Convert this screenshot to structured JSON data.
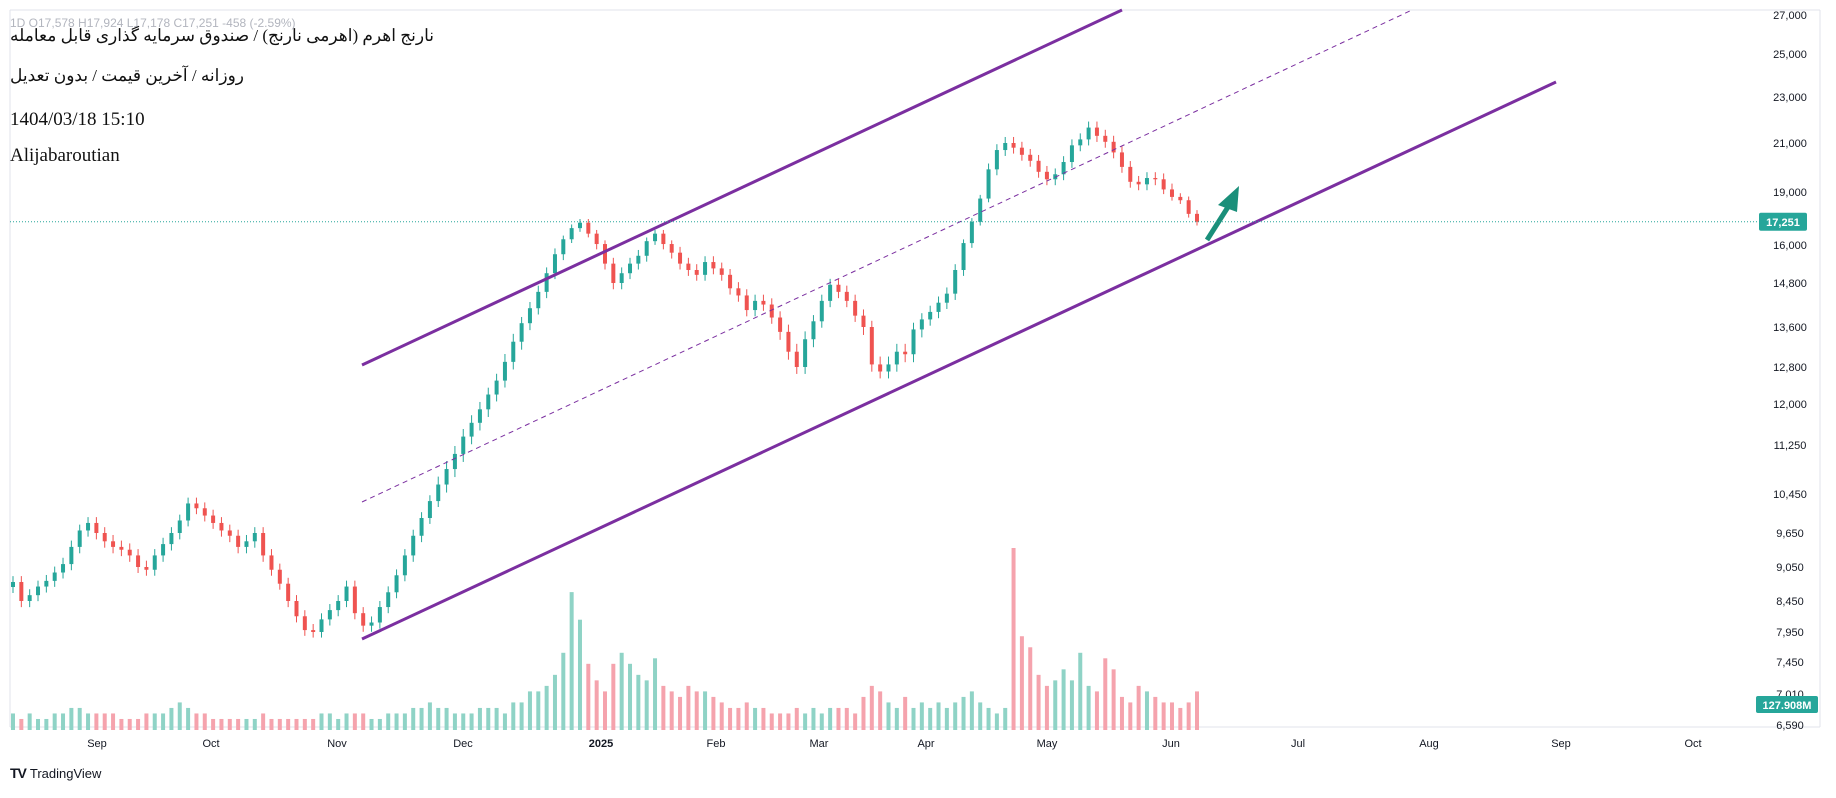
{
  "header": {
    "ticker_line": "نارنج اهرم (اهرمی نارنج) / صندوق سرمایه گذاری قابل معامله",
    "ohlc_line": "1D O17,578 H17,924 L17,178 C17,251 -458 (-2.59%)",
    "subtitle": "روزانه / آخرین قیمت / بدون تعدیل",
    "timestamp": "1404/03/18 15:10",
    "author": "Alijabaroutian"
  },
  "watermark": {
    "text": "TradingView",
    "logo": "TV"
  },
  "chart_data": {
    "type": "candlestick",
    "title": "نارنج اهرم (اهرمی نارنج) / صندوق سرمایه گذاری قابل معامله",
    "interval": "1D",
    "price_scale": "log",
    "y_ticks": [
      27000,
      25000,
      23000,
      21000,
      19000,
      16000,
      14800,
      13600,
      12800,
      12000,
      11250,
      10450,
      9650,
      9050,
      8450,
      7950,
      7450,
      7010,
      6590
    ],
    "y_tick_labels": [
      "27,000",
      "25,000",
      "23,000",
      "21,000",
      "19,000",
      "16,000",
      "14,800",
      "13,600",
      "12,800",
      "12,000",
      "11,250",
      "10,450",
      "9,650",
      "9,050",
      "8,450",
      "7,950",
      "7,450",
      "7,010",
      "6,590"
    ],
    "x_ticks": [
      "Sep",
      "Oct",
      "Nov",
      "Dec",
      "2025",
      "Feb",
      "Mar",
      "Apr",
      "May",
      "Jun",
      "Jul",
      "Aug",
      "Sep",
      "Oct"
    ],
    "last_price": {
      "value": 17251,
      "label": "17,251",
      "color": "#26a69a"
    },
    "last_volume": {
      "label": "127.908M",
      "color": "#26a69a"
    },
    "colors": {
      "up": "#26a69a",
      "down": "#ef5350",
      "up_volume": "#8fd3c6",
      "down_volume": "#f5a3ad",
      "channel": "#7b2fa0",
      "arrow": "#1a8f7a"
    },
    "closes": [
      8780,
      8450,
      8550,
      8700,
      8800,
      8950,
      9100,
      9400,
      9700,
      9850,
      9650,
      9500,
      9400,
      9350,
      9250,
      9050,
      9000,
      9250,
      9450,
      9650,
      9900,
      10250,
      10150,
      10000,
      9850,
      9700,
      9600,
      9400,
      9500,
      9650,
      9250,
      9000,
      8750,
      8450,
      8200,
      7980,
      7950,
      8150,
      8300,
      8450,
      8700,
      8250,
      8050,
      8100,
      8350,
      8600,
      8900,
      9250,
      9600,
      9950,
      10300,
      10600,
      10850,
      11100,
      11400,
      11650,
      11900,
      12200,
      12500,
      12900,
      13300,
      13700,
      14100,
      14550,
      15100,
      15700,
      16300,
      16900,
      17200,
      16600,
      16050,
      15400,
      14800,
      15100,
      15400,
      15650,
      16200,
      16600,
      16050,
      15750,
      15400,
      15200,
      15050,
      15450,
      15250,
      15050,
      14650,
      14450,
      14050,
      14300,
      14200,
      13850,
      13500,
      13100,
      12800,
      13350,
      13750,
      14300,
      14750,
      14550,
      14300,
      13900,
      13600,
      12850,
      12700,
      12850,
      13100,
      13050,
      13550,
      13800,
      14000,
      14250,
      14500,
      15200,
      16100,
      17250,
      18600,
      19900,
      20700,
      21000,
      20800,
      20500,
      20250,
      19800,
      19500,
      19700,
      20200,
      20900,
      21150,
      21650,
      21300,
      21050,
      20600,
      20000,
      19400,
      19300,
      19550,
      19500,
      19100,
      18700,
      18500,
      17700,
      17251
    ],
    "volumes": [
      3,
      2,
      3,
      2,
      2,
      3,
      3,
      4,
      4,
      3,
      3,
      3,
      3,
      2,
      2,
      2,
      3,
      3,
      3,
      4,
      5,
      4,
      3,
      3,
      2,
      2,
      2,
      2,
      2,
      2,
      3,
      2,
      2,
      2,
      2,
      2,
      2,
      3,
      3,
      2,
      3,
      3,
      3,
      2,
      2,
      3,
      3,
      3,
      4,
      4,
      5,
      4,
      4,
      3,
      3,
      3,
      4,
      4,
      4,
      3,
      5,
      5,
      7,
      7,
      8,
      10,
      14,
      25,
      20,
      12,
      9,
      7,
      12,
      14,
      12,
      10,
      9,
      13,
      8,
      7,
      6,
      8,
      7,
      7,
      6,
      5,
      4,
      4,
      5,
      4,
      4,
      3,
      3,
      3,
      4,
      3,
      4,
      3,
      4,
      4,
      4,
      3,
      6,
      8,
      7,
      5,
      4,
      6,
      4,
      5,
      4,
      5,
      4,
      5,
      6,
      7,
      5,
      4,
      3,
      4,
      33,
      17,
      15,
      10,
      8,
      9,
      11,
      9,
      14,
      8,
      7,
      13,
      11,
      6,
      5,
      8,
      7,
      6,
      5,
      5,
      4,
      5,
      7
    ]
  }
}
